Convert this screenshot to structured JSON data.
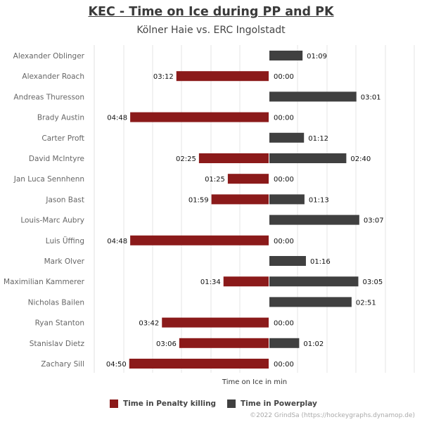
{
  "header": {
    "title": "KEC - Time on Ice during PP and PK",
    "subtitle": "Kölner Haie vs. ERC Ingolstadt"
  },
  "chart_data": {
    "type": "bar",
    "orientation": "horizontal-diverging",
    "title": "KEC - Time on Ice during PP and PK",
    "subtitle": "Kölner Haie vs. ERC Ingolstadt",
    "xlabel": "Time on Ice in min",
    "ylabel": "",
    "grid": true,
    "legend_position": "bottom",
    "categories": [
      "Alexander Oblinger",
      "Alexander Roach",
      "Andreas Thuresson",
      "Brady Austin",
      "Carter Proft",
      "David McIntyre",
      "Jan Luca Sennhenn",
      "Jason Bast",
      "Louis-Marc Aubry",
      "Luis Üffing",
      "Mark Olver",
      "Maximilian Kammerer",
      "Nicholas Bailen",
      "Ryan Stanton",
      "Stanislav Dietz",
      "Zachary Sill"
    ],
    "series": [
      {
        "name": "Time in Penalty killing",
        "color": "#8b1a1a",
        "side": "left",
        "values_seconds": [
          0,
          192,
          0,
          288,
          0,
          145,
          85,
          119,
          0,
          288,
          0,
          94,
          0,
          222,
          186,
          290
        ],
        "labels": [
          "",
          "03:12",
          "",
          "04:48",
          "",
          "02:25",
          "01:25",
          "01:59",
          "",
          "04:48",
          "",
          "01:34",
          "",
          "03:42",
          "03:06",
          "04:50"
        ]
      },
      {
        "name": "Time in Powerplay",
        "color": "#404040",
        "side": "right",
        "values_seconds": [
          69,
          0,
          181,
          0,
          72,
          160,
          0,
          73,
          187,
          0,
          76,
          185,
          171,
          0,
          62,
          0
        ],
        "labels": [
          "01:09",
          "00:00",
          "03:01",
          "00:00",
          "01:12",
          "02:40",
          "00:00",
          "01:13",
          "03:07",
          "00:00",
          "01:16",
          "03:05",
          "02:51",
          "00:00",
          "01:02",
          "00:00"
        ]
      }
    ]
  },
  "legend": {
    "pk_label": "Time in Penalty killing",
    "pp_label": "Time in Powerplay",
    "pk_color": "#8b1a1a",
    "pp_color": "#404040"
  },
  "footer": {
    "credit": "©2022 GrindSa (https://hockeygraphs.dynamop.de)"
  }
}
